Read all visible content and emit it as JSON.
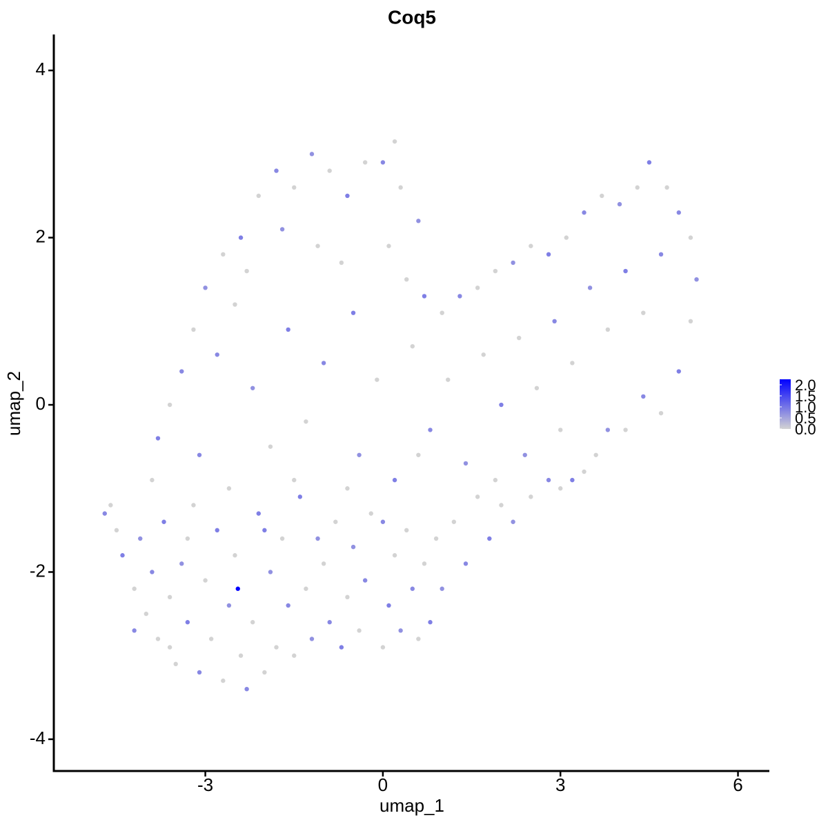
{
  "chart_data": {
    "type": "scatter",
    "title": "Coq5",
    "x_label": "umap_1",
    "y_label": "umap_2",
    "xlim": [
      -5.56,
      6.53
    ],
    "ylim": [
      -4.38,
      4.43
    ],
    "xticks": [
      -3,
      0,
      3,
      6
    ],
    "yticks": [
      -4,
      -2,
      0,
      2,
      4
    ],
    "low_color": "#d3d3d3",
    "high_color": "#0000ff",
    "clim": [
      0,
      2.25
    ],
    "cticks": [
      {
        "value": 0,
        "label": "0.0"
      },
      0.5,
      {
        "value": 1,
        "label": "1.0"
      },
      1.5,
      {
        "value": 2,
        "label": "2.0"
      }
    ],
    "x": [
      -4.6,
      -4.7,
      -4.5,
      -4.4,
      -4.2,
      -4.1,
      -4.0,
      -3.9,
      -3.8,
      -3.7,
      -3.6,
      -3.5,
      -3.4,
      -3.3,
      -3.2,
      -3.1,
      -3.0,
      -2.9,
      -2.8,
      -2.7,
      -2.6,
      -2.5,
      -2.45,
      -2.4,
      -2.3,
      -2.2,
      -2.1,
      -2.0,
      -1.9,
      -1.8,
      -1.7,
      -1.6,
      -1.5,
      -1.4,
      -1.3,
      -1.2,
      -1.0,
      -0.9,
      -0.8,
      -0.7,
      -0.6,
      -0.5,
      -0.4,
      -0.3,
      -0.2,
      0.0,
      0.1,
      0.2,
      0.3,
      0.4,
      0.5,
      0.6,
      0.7,
      0.8,
      0.9,
      1.0,
      1.2,
      1.4,
      1.6,
      1.8,
      2.0,
      2.2,
      2.5,
      2.8,
      3.0,
      3.2,
      3.4,
      3.6,
      3.8,
      4.1,
      4.4,
      4.7,
      5.0,
      5.2,
      5.3,
      5.2,
      5.0,
      4.8,
      4.5,
      4.3,
      4.0,
      3.7,
      3.4,
      3.1,
      2.8,
      2.5,
      2.2,
      1.9,
      1.6,
      1.3,
      1.0,
      0.7,
      0.4,
      0.6,
      0.3,
      0.0,
      0.2,
      -0.3,
      -0.6,
      -0.9,
      -1.2,
      -1.5,
      -1.8,
      -2.1,
      -2.4,
      -2.7,
      -3.0,
      -3.2,
      -3.4,
      -3.6,
      -3.8,
      -3.9,
      -2.8,
      -2.5,
      -2.2,
      -1.9,
      -1.6,
      -1.3,
      -1.0,
      -0.7,
      -0.4,
      -0.1,
      0.2,
      0.5,
      0.8,
      1.1,
      1.4,
      1.7,
      2.0,
      2.3,
      2.6,
      2.9,
      3.2,
      3.5,
      3.8,
      4.1,
      4.4,
      4.7,
      3.0,
      2.4,
      1.9,
      -3.1,
      -2.6,
      -2.0,
      -1.5,
      -1.1,
      -0.6,
      0.0,
      0.6,
      -2.3,
      -1.7,
      -1.1,
      -0.5,
      0.1,
      -3.3,
      -4.2,
      -3.6
    ],
    "y": [
      -1.2,
      -1.3,
      -1.5,
      -1.8,
      -2.2,
      -1.6,
      -2.5,
      -2.0,
      -2.8,
      -1.4,
      -2.3,
      -3.1,
      -1.9,
      -2.6,
      -1.2,
      -3.2,
      -2.1,
      -2.8,
      -1.5,
      -3.3,
      -2.4,
      -1.8,
      -2.2,
      -3.0,
      -3.4,
      -2.6,
      -1.3,
      -3.2,
      -2.0,
      -2.9,
      -1.6,
      -2.4,
      -3.0,
      -1.1,
      -2.2,
      -2.8,
      -1.9,
      -2.6,
      -1.4,
      -2.9,
      -2.3,
      -1.7,
      -2.7,
      -2.1,
      -1.3,
      -2.9,
      -2.4,
      -1.8,
      -2.7,
      -1.5,
      -2.2,
      -2.8,
      -1.9,
      -2.6,
      -1.6,
      -2.2,
      -1.4,
      -1.9,
      -1.1,
      -1.6,
      -1.2,
      -1.4,
      -1.1,
      -0.9,
      -1.0,
      -0.9,
      -0.8,
      -0.6,
      -0.3,
      -0.3,
      0.1,
      -0.1,
      0.4,
      1.0,
      1.5,
      2.0,
      2.3,
      2.6,
      2.9,
      2.6,
      2.4,
      2.5,
      2.3,
      2.0,
      1.8,
      1.9,
      1.7,
      1.6,
      1.4,
      1.3,
      1.1,
      1.3,
      1.5,
      2.2,
      2.6,
      2.9,
      3.15,
      2.9,
      2.5,
      2.8,
      3.0,
      2.6,
      2.8,
      2.5,
      2.0,
      1.8,
      1.4,
      0.9,
      0.4,
      0.0,
      -0.4,
      -0.9,
      0.6,
      1.2,
      0.2,
      -0.5,
      0.9,
      -0.2,
      0.5,
      1.7,
      -0.6,
      0.3,
      -0.9,
      0.7,
      -0.3,
      0.3,
      -0.7,
      0.6,
      0.0,
      0.8,
      0.2,
      1.0,
      0.5,
      1.4,
      0.9,
      1.6,
      1.1,
      1.8,
      -0.3,
      -0.6,
      -0.9,
      -0.6,
      -1.0,
      -1.5,
      -0.9,
      -1.6,
      -1.0,
      -1.4,
      -0.6,
      1.6,
      2.1,
      1.9,
      1.1,
      1.9,
      -1.6,
      -2.7,
      -2.9
    ],
    "values": [
      0,
      0.8,
      0,
      0.9,
      0,
      0.7,
      0,
      0.8,
      0,
      0.9,
      0,
      0,
      0.7,
      0.9,
      0,
      0.8,
      0,
      0,
      0.9,
      0,
      0.7,
      0,
      2.25,
      0,
      0.8,
      0,
      0.9,
      0,
      0.7,
      0,
      0,
      0.8,
      0,
      0.9,
      0,
      0.7,
      0,
      0.8,
      0,
      0.9,
      0,
      0.7,
      0,
      0.8,
      0,
      0,
      0.9,
      0,
      0.7,
      0,
      0.8,
      0,
      0,
      0.9,
      0,
      0.7,
      0,
      0.8,
      0,
      0.9,
      0,
      0.7,
      0,
      0.8,
      0,
      0.9,
      0,
      0,
      0.7,
      0,
      0.8,
      0,
      0.9,
      0,
      0.7,
      0,
      0.8,
      0,
      0.9,
      0,
      0.7,
      0,
      0.8,
      0,
      0.9,
      0,
      0.7,
      0,
      0,
      0.8,
      0,
      0.9,
      0,
      0.7,
      0,
      0.8,
      0,
      0,
      0.9,
      0,
      0.7,
      0,
      0.8,
      0,
      0.9,
      0,
      0.7,
      0,
      0.8,
      0,
      0.9,
      0,
      0.8,
      0,
      0.7,
      0,
      0.9,
      0,
      0.8,
      0,
      0.7,
      0,
      0.9,
      0,
      0.8,
      0,
      0.7,
      0,
      0.9,
      0,
      0,
      0.8,
      0,
      0.7,
      0,
      0.9,
      0,
      0.8,
      0,
      0.7,
      0,
      0.8,
      0,
      0.9,
      0,
      0.7,
      0,
      0.8,
      0,
      0,
      0.7,
      0,
      0.9,
      0,
      0,
      0.8,
      0
    ]
  }
}
